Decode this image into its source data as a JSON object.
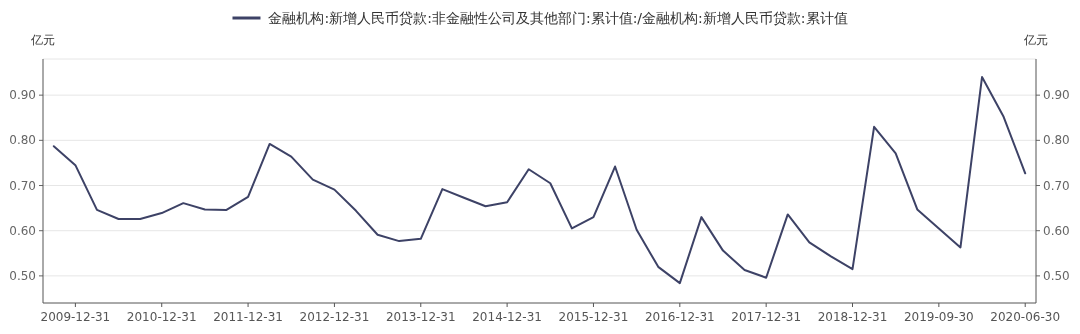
{
  "chart_data": {
    "type": "line",
    "categories": [
      null,
      "2009-12-31",
      null,
      null,
      null,
      "2010-12-31",
      null,
      null,
      null,
      "2011-12-31",
      null,
      null,
      null,
      "2012-12-31",
      null,
      null,
      null,
      "2013-12-31",
      null,
      null,
      null,
      "2014-12-31",
      null,
      null,
      null,
      "2015-12-31",
      null,
      null,
      null,
      "2016-12-31",
      null,
      null,
      null,
      "2017-12-31",
      null,
      null,
      null,
      "2018-12-31",
      null,
      null,
      null,
      "2019-09-30",
      null,
      null,
      null,
      "2020-06-30"
    ],
    "series": [
      {
        "name": "金融机构:新增人民币贷款:非金融性公司及其他部门:累计值:/金融机构:新增人民币贷款:累计值",
        "color": "#3d4266",
        "values": [
          0.787,
          0.745,
          0.646,
          0.626,
          0.626,
          0.639,
          0.661,
          0.647,
          0.646,
          0.675,
          0.792,
          0.764,
          0.713,
          0.691,
          0.644,
          0.591,
          0.577,
          0.582,
          0.692,
          0.673,
          0.654,
          0.663,
          0.736,
          0.705,
          0.605,
          0.63,
          0.742,
          0.602,
          0.52,
          0.484,
          0.63,
          0.556,
          0.513,
          0.496,
          0.636,
          0.574,
          0.543,
          0.515,
          0.83,
          0.771,
          0.647,
          0.605,
          0.563,
          0.94,
          0.852,
          0.727
        ]
      }
    ],
    "ylabel": "亿元",
    "y2label": "亿元",
    "ylim": [
      0.44,
      0.98
    ],
    "yticks": [
      {
        "value": 0.5,
        "label": "0.50"
      },
      {
        "value": 0.6,
        "label": "0.60"
      },
      {
        "value": 0.7,
        "label": "0.70"
      },
      {
        "value": 0.8,
        "label": "0.80"
      },
      {
        "value": 0.9,
        "label": "0.90"
      }
    ],
    "y2lim": [
      0.44,
      0.98
    ],
    "y2ticks": [
      {
        "value": 0.5,
        "label": "0.50"
      },
      {
        "value": 0.6,
        "label": "0.60"
      },
      {
        "value": 0.7,
        "label": "0.70"
      },
      {
        "value": 0.8,
        "label": "0.80"
      },
      {
        "value": 0.9,
        "label": "0.90"
      }
    ],
    "grid": "y",
    "legend": "top",
    "marker": "none",
    "line_style": "solid"
  }
}
